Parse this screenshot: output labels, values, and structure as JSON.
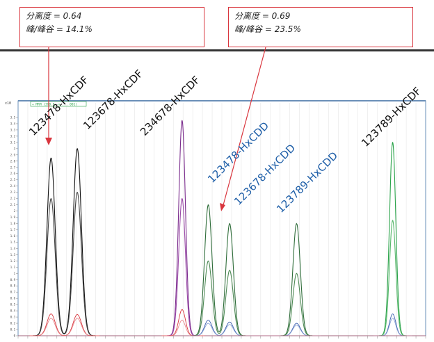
{
  "callouts": [
    {
      "line1": "分离度 = 0.64",
      "line2": "峰/峰谷 = 14.1%"
    },
    {
      "line1": "分离度 = 0.69",
      "line2": "峰/峰谷 = 23.5%"
    }
  ],
  "chart_data": {
    "type": "line",
    "legend_box": "+ MRM (390.8 -> ... 001)",
    "y_ticks": [
      "3.5",
      "3.4",
      "3.3",
      "3.2",
      "3.1",
      "3",
      "2.9",
      "2.8",
      "2.7",
      "2.6",
      "2.5",
      "2.4",
      "2.3",
      "2.2",
      "2.1",
      "2",
      "1.9",
      "1.8",
      "1.7",
      "1.6",
      "1.5",
      "1.4",
      "1.3",
      "1.2",
      "1.1",
      "1",
      "0.9",
      "0.8",
      "0.7",
      "0.6",
      "0.5",
      "0.4",
      "0.3",
      "0.2",
      "0.1",
      "0"
    ],
    "ylim": [
      0,
      3.6
    ],
    "peak_labels": [
      {
        "text": "123478-HxCDF",
        "color": "#111111"
      },
      {
        "text": "123678-HxCDF",
        "color": "#111111"
      },
      {
        "text": "234678-HxCDF",
        "color": "#111111"
      },
      {
        "text": "123478-HxCDD",
        "color": "#1f5fa8"
      },
      {
        "text": "123678-HxCDD",
        "color": "#1f5fa8"
      },
      {
        "text": "123789-HxCDD",
        "color": "#1f5fa8"
      },
      {
        "text": "123789-HxCDF",
        "color": "#111111"
      }
    ],
    "peaks": [
      {
        "center": 1.7,
        "width": 0.55,
        "group": "black",
        "heights": [
          2.85,
          2.2,
          0.35,
          0.28
        ]
      },
      {
        "center": 3.05,
        "width": 0.55,
        "group": "black",
        "heights": [
          3.0,
          2.3,
          0.34,
          0.28
        ]
      },
      {
        "center": 8.45,
        "width": 0.45,
        "group": "purple",
        "heights": [
          3.45,
          2.2,
          0.42,
          0.25
        ]
      },
      {
        "center": 9.8,
        "width": 0.5,
        "group": "darkgreen",
        "heights": [
          2.1,
          1.2,
          0.25,
          0.2
        ]
      },
      {
        "center": 10.9,
        "width": 0.5,
        "group": "darkgreen",
        "heights": [
          1.8,
          1.05,
          0.22,
          0.18
        ]
      },
      {
        "center": 14.35,
        "width": 0.5,
        "group": "darkgreen",
        "heights": [
          1.8,
          1.0,
          0.2,
          0.17
        ]
      },
      {
        "center": 19.3,
        "width": 0.42,
        "group": "green",
        "heights": [
          3.1,
          1.85,
          0.35,
          0.28
        ]
      }
    ],
    "xlim": [
      0,
      21
    ],
    "colors": {
      "black": [
        "#111111",
        "#444444",
        "#d9363e",
        "#e8888c"
      ],
      "purple": [
        "#7a2b8c",
        "#9b4aa8",
        "#d9363e",
        "#e8888c"
      ],
      "darkgreen": [
        "#2f6d3a",
        "#4e8a55",
        "#3c5fb0",
        "#8aa2d4"
      ],
      "green": [
        "#2aa34a",
        "#57b86b",
        "#3c5fb0",
        "#8aa2d4"
      ]
    },
    "grid": true
  }
}
